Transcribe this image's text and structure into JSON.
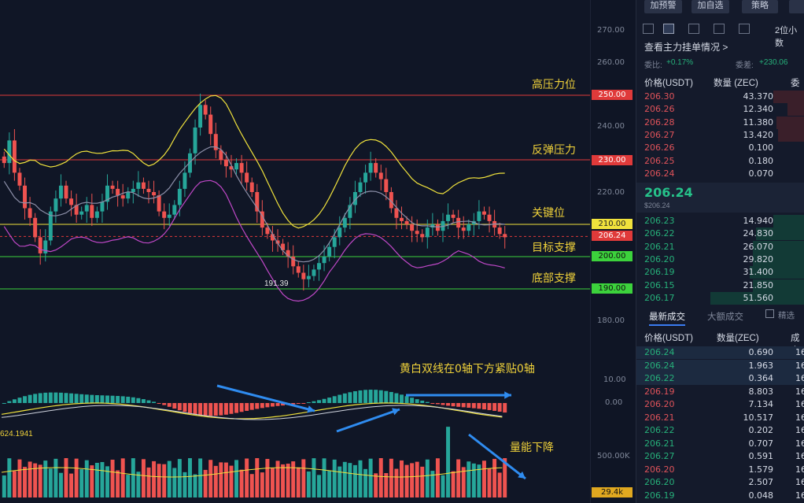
{
  "chart": {
    "price_ticks": [
      "270.00",
      "260.00",
      "250.00",
      "240.00",
      "230.00",
      "220.00",
      "210.00",
      "200.00",
      "190.00",
      "180.00"
    ],
    "levels": [
      {
        "name": "高压力位",
        "price": "250.00",
        "color": "#e03a3a",
        "text_color": "#ffffff"
      },
      {
        "name": "反弹压力",
        "price": "230.00",
        "color": "#e03a3a",
        "text_color": "#ffffff"
      },
      {
        "name": "关键位",
        "price": "210.00",
        "color": "#f0e23c",
        "text_color": "#222222"
      },
      {
        "name": "目标支撑",
        "price": "200.00",
        "color": "#3cd23c",
        "text_color": "#111111"
      },
      {
        "name": "底部支撑",
        "price": "190.00",
        "color": "#3cd23c",
        "text_color": "#111111"
      }
    ],
    "current_price_tag": "206.24",
    "low_marker": "191.39",
    "macd_ticks": [
      "10.00",
      "0.00"
    ],
    "macd_left_value": "624.1941",
    "macd_note": "黄白双线在0轴下方紧贴0轴",
    "volume_note": "量能下降",
    "volume_tick": "500.00K",
    "volume_tag": "29.4k",
    "colors": {
      "up": "#26a69a",
      "down": "#ef5350",
      "ma": "#f0e23c",
      "bb_lower": "#c048c8",
      "bb_mid": "#8c8fa8"
    }
  },
  "orderbook": {
    "buttons": [
      "加预警",
      "加自选",
      "策略"
    ],
    "precision": "2位小数",
    "depth_link": "查看主力挂单情况 >",
    "ratio_label": "委比:",
    "ratio_value": "+0.17%",
    "diff_label": "委差:",
    "diff_value": "+230.06",
    "col_price": "价格(USDT)",
    "col_qty": "数量 (ZEC)",
    "col_cum": "委",
    "asks": [
      {
        "price": "206.30",
        "qty": "43.370"
      },
      {
        "price": "206.26",
        "qty": "12.340"
      },
      {
        "price": "206.28",
        "qty": "11.380"
      },
      {
        "price": "206.27",
        "qty": "13.420"
      },
      {
        "price": "206.26",
        "qty": "0.100"
      },
      {
        "price": "206.25",
        "qty": "0.180"
      },
      {
        "price": "206.24",
        "qty": "0.070"
      }
    ],
    "last_price": "206.24",
    "last_price_sub": "$206.24",
    "bids": [
      {
        "price": "206.23",
        "qty": "14.940"
      },
      {
        "price": "206.22",
        "qty": "24.830"
      },
      {
        "price": "206.21",
        "qty": "26.070"
      },
      {
        "price": "206.20",
        "qty": "29.820"
      },
      {
        "price": "206.19",
        "qty": "31.400"
      },
      {
        "price": "206.15",
        "qty": "21.850"
      },
      {
        "price": "206.17",
        "qty": "51.560"
      }
    ],
    "tab_latest": "最新成交",
    "tab_large": "大额成交",
    "precise_label": "精选",
    "trades_col_price": "价格(USDT)",
    "trades_col_qty": "数量(ZEC)",
    "trades_col_time": "成交",
    "trades": [
      {
        "price": "206.24",
        "qty": "0.690",
        "t": "16",
        "side": "buy"
      },
      {
        "price": "206.24",
        "qty": "1.963",
        "t": "16",
        "side": "buy"
      },
      {
        "price": "206.22",
        "qty": "0.364",
        "t": "16",
        "side": "buy"
      },
      {
        "price": "206.19",
        "qty": "8.803",
        "t": "16",
        "side": "sell"
      },
      {
        "price": "206.20",
        "qty": "7.134",
        "t": "16",
        "side": "sell"
      },
      {
        "price": "206.21",
        "qty": "10.517",
        "t": "16",
        "side": "sell"
      },
      {
        "price": "206.22",
        "qty": "0.202",
        "t": "16",
        "side": "buy"
      },
      {
        "price": "206.21",
        "qty": "0.707",
        "t": "16",
        "side": "buy"
      },
      {
        "price": "206.27",
        "qty": "0.591",
        "t": "16",
        "side": "buy"
      },
      {
        "price": "206.20",
        "qty": "1.579",
        "t": "16",
        "side": "sell"
      },
      {
        "price": "206.20",
        "qty": "2.507",
        "t": "16",
        "side": "buy"
      },
      {
        "price": "206.19",
        "qty": "0.048",
        "t": "16",
        "side": "buy"
      }
    ]
  }
}
